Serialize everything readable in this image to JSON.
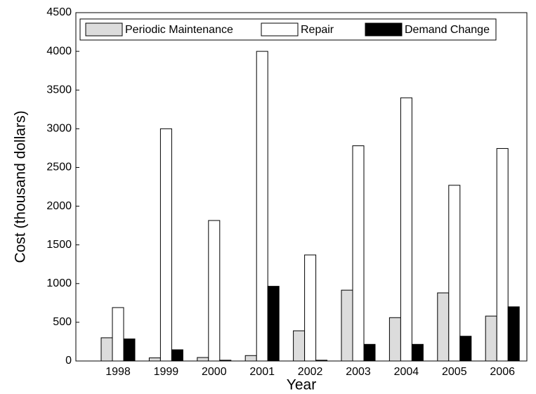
{
  "chart_data": {
    "type": "bar",
    "y_label": "Cost (thousand dollars)",
    "x_label": "Year",
    "categories": [
      "1998",
      "1999",
      "2000",
      "2001",
      "2002",
      "2003",
      "2004",
      "2005",
      "2006"
    ],
    "series": [
      {
        "name": "Periodic Maintenance",
        "color": "#dcdcdc",
        "values": [
          300,
          40,
          45,
          70,
          390,
          915,
          560,
          880,
          580
        ]
      },
      {
        "name": "Repair",
        "color": "#ffffff",
        "values": [
          690,
          3000,
          1815,
          4000,
          1370,
          2780,
          3400,
          2270,
          2745
        ]
      },
      {
        "name": "Demand Change",
        "color": "#000000",
        "values": [
          285,
          145,
          10,
          965,
          10,
          215,
          215,
          320,
          700
        ]
      }
    ],
    "ylim": [
      0,
      4500
    ],
    "yticks": [
      0,
      500,
      1000,
      1500,
      2000,
      2500,
      3000,
      3500,
      4000,
      4500
    ]
  }
}
